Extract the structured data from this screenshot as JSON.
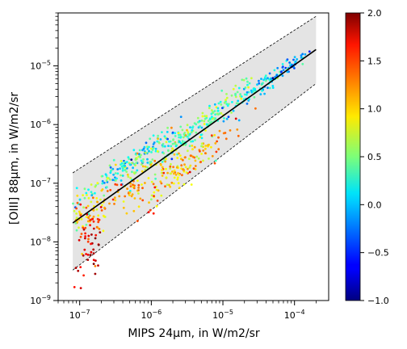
{
  "chart_data": {
    "type": "scatter",
    "title": "",
    "xlabel": "MIPS 24μm, in W/m2/sr",
    "ylabel": "[OIII] 88μm, in W/m2/sr",
    "xscale": "log",
    "yscale": "log",
    "xlim": [
      5e-08,
      0.0003
    ],
    "ylim": [
      1e-09,
      8e-05
    ],
    "x_ticks": [
      {
        "value": 1e-07,
        "base": "10",
        "exp": "−7"
      },
      {
        "value": 1e-06,
        "base": "10",
        "exp": "−6"
      },
      {
        "value": 1e-05,
        "base": "10",
        "exp": "−5"
      },
      {
        "value": 0.0001,
        "base": "10",
        "exp": "−4"
      }
    ],
    "y_ticks": [
      {
        "value": 1e-09,
        "base": "10",
        "exp": "−9"
      },
      {
        "value": 1e-08,
        "base": "10",
        "exp": "−8"
      },
      {
        "value": 1e-07,
        "base": "10",
        "exp": "−7"
      },
      {
        "value": 1e-06,
        "base": "10",
        "exp": "−6"
      },
      {
        "value": 1e-05,
        "base": "10",
        "exp": "−5"
      }
    ],
    "colorbar": {
      "colormap": "jet",
      "range": [
        -1.0,
        2.0
      ],
      "ticks": [
        "−1.0",
        "−0.5",
        "0.0",
        "0.5",
        "1.0",
        "1.5",
        "2.0"
      ]
    },
    "fit_line": {
      "x": [
        8e-08,
        0.0002
      ],
      "y": [
        2.1e-08,
        1.9e-05
      ]
    },
    "band_upper": {
      "x": [
        8e-08,
        0.0002
      ],
      "y": [
        1.5e-07,
        7e-05
      ]
    },
    "band_lower": {
      "x": [
        8e-08,
        0.0002
      ],
      "y": [
        3.3e-09,
        5e-06
      ]
    },
    "grid": false,
    "legend": "none",
    "points_description_counts": {
      "clusters": 14
    }
  }
}
